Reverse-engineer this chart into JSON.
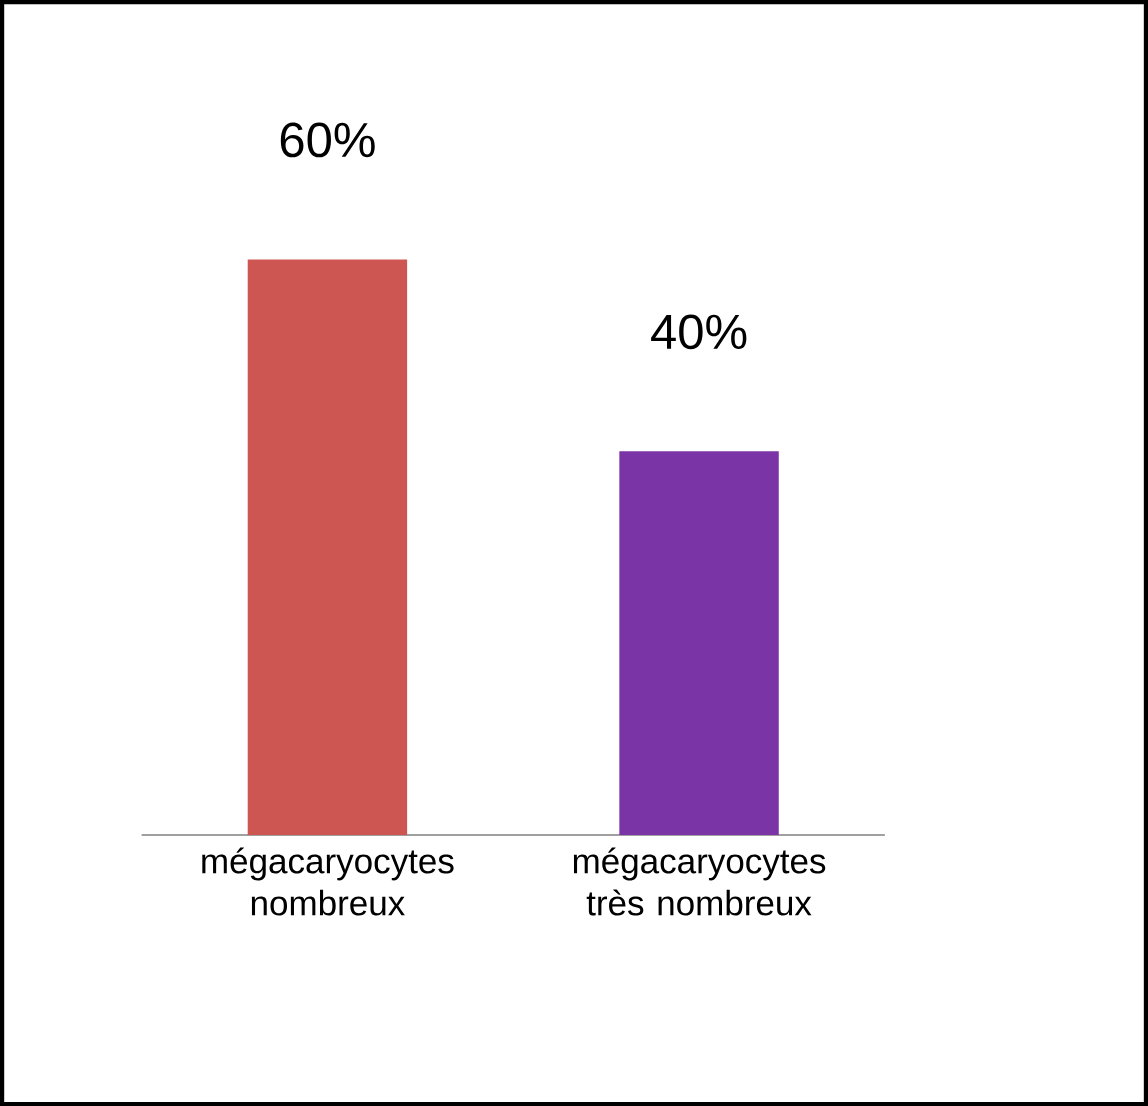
{
  "chart_data": {
    "type": "bar",
    "categories": [
      "mégacaryocytes nombreux",
      "mégacaryocytes très nombreux"
    ],
    "values": [
      60,
      40
    ],
    "colors": [
      "#cd5653",
      "#7a34a6"
    ],
    "value_labels": [
      "60%",
      "40%"
    ]
  }
}
